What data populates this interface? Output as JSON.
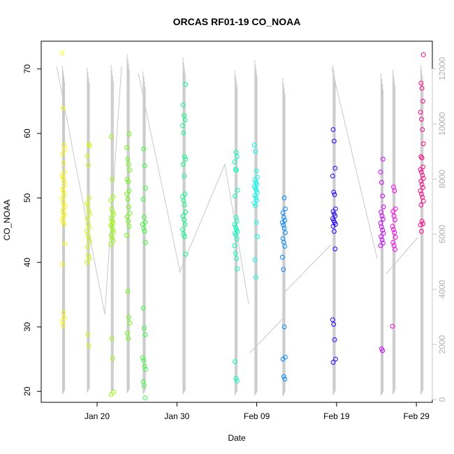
{
  "chart_data": {
    "type": "scatter",
    "title": "ORCAS RF01-19 CO_NOAA",
    "xlabel": "Date",
    "ylabel": "CO_NOAA",
    "xlim": [
      "2016-01-13",
      "2016-03-02"
    ],
    "ylim": [
      18.3,
      74.3
    ],
    "yticks": [
      20,
      30,
      40,
      50,
      60,
      70
    ],
    "xticks": [
      {
        "date": "2016-01-20",
        "label": "Jan 20"
      },
      {
        "date": "2016-01-30",
        "label": "Jan 30"
      },
      {
        "date": "2016-02-09",
        "label": "Feb 09"
      },
      {
        "date": "2016-02-19",
        "label": "Feb 19"
      },
      {
        "date": "2016-02-29",
        "label": "Feb 29"
      }
    ],
    "y2lim": [
      -100,
      13000
    ],
    "y2ticks": [
      0,
      2000,
      4000,
      6000,
      8000,
      10000,
      12000
    ],
    "grid": false,
    "legend": "none",
    "secondary_color": "#c8c8c8",
    "flights": [
      {
        "date": "2016-01-15.8",
        "color": "#ffff00",
        "values": [
          72.5,
          63.9,
          58.2,
          57.5,
          56.8,
          55.4,
          54.0,
          53.5,
          53.1,
          52.6,
          52.0,
          51.4,
          51.0,
          50.5,
          50.0,
          49.5,
          49.0,
          48.6,
          48.1,
          47.6,
          47.2,
          46.8,
          46.3,
          45.9,
          42.9,
          39.7,
          32.2,
          31.4,
          30.9,
          30.2
        ]
      },
      {
        "date": "2016-01-18.9",
        "color": "#ccff00",
        "values": [
          58.3,
          58.1,
          56.5,
          55.1,
          50.0,
          49.2,
          48.8,
          48.0,
          47.5,
          46.8,
          46.0,
          45.4,
          44.9,
          44.3,
          43.8,
          43.2,
          42.4,
          41.1,
          40.6,
          40.0,
          28.8,
          27.1
        ]
      },
      {
        "date": "2016-01-21.9",
        "color": "#99ff00",
        "values": [
          59.5,
          52.9,
          50.2,
          49.6,
          48.3,
          47.8,
          47.4,
          46.9,
          46.5,
          46.1,
          45.8,
          45.6,
          45.1,
          44.7,
          44.2,
          43.8,
          43.3,
          42.8,
          28.2,
          25.1,
          19.9,
          19.5
        ]
      },
      {
        "date": "2016-01-23.9",
        "color": "#66ff00",
        "values": [
          59.9,
          57.8,
          56.0,
          55.2,
          54.3,
          52.9,
          52.5,
          51.1,
          50.6,
          49.8,
          48.6,
          47.6,
          47.1,
          46.4,
          45.6,
          44.2,
          35.5,
          31.5,
          30.6,
          29.0,
          28.2
        ]
      },
      {
        "date": "2016-01-25.9",
        "color": "#33ff33",
        "values": [
          57.6,
          55.0,
          51.5,
          49.8,
          47.0,
          46.2,
          45.9,
          45.3,
          44.8,
          43.1,
          32.9,
          29.8,
          28.8,
          25.2,
          24.8,
          23.9,
          23.4,
          21.5,
          20.9,
          19.0
        ]
      },
      {
        "date": "2016-01-30.9",
        "color": "#00ff88",
        "values": [
          67.6,
          64.4,
          62.8,
          62.1,
          61.2,
          60.1,
          56.4,
          56.0,
          55.2,
          53.4,
          50.6,
          50.2,
          49.6,
          48.9,
          47.8,
          47.2,
          46.6,
          45.9,
          45.1,
          44.4,
          44.0,
          41.3
        ]
      },
      {
        "date": "2016-02-06.4",
        "color": "#00ffbb",
        "values": [
          57.1,
          56.4,
          55.6,
          54.4,
          54.3,
          51.2,
          50.3,
          47.0,
          46.4,
          45.9,
          45.5,
          45.1,
          44.8,
          44.5,
          44.2,
          43.6,
          42.6,
          41.4,
          40.6,
          39.0,
          24.6,
          22.0,
          21.6
        ]
      },
      {
        "date": "2016-02-08.9",
        "color": "#00ffee",
        "values": [
          58.2,
          57.2,
          54.2,
          53.2,
          52.8,
          52.4,
          52.1,
          51.8,
          51.5,
          51.2,
          50.8,
          50.4,
          50.0,
          49.6,
          49.2,
          48.8,
          46.2,
          44.0,
          40.4,
          37.7
        ]
      },
      {
        "date": "2016-02-12.4",
        "color": "#0088ff",
        "values": [
          50.0,
          48.3,
          47.7,
          47.0,
          46.5,
          46.2,
          45.8,
          45.3,
          44.6,
          43.7,
          43.1,
          42.5,
          40.8,
          38.9,
          30.0,
          25.3,
          25.0,
          22.3,
          21.9
        ]
      },
      {
        "date": "2016-02-18.7",
        "color": "#2200ff",
        "values": [
          60.6,
          58.8,
          54.6,
          53.4,
          50.9,
          50.5,
          48.3,
          47.9,
          47.5,
          47.2,
          46.8,
          46.5,
          46.2,
          45.9,
          45.6,
          44.8,
          42.1,
          31.1,
          30.4,
          28.0,
          25.0,
          24.5
        ]
      },
      {
        "date": "2016-02-24.7",
        "color": "#cc00ff",
        "values": [
          56.0,
          54.0,
          52.4,
          50.3,
          48.6,
          47.8,
          47.2,
          46.7,
          46.1,
          45.5,
          45.0,
          44.5,
          44.0,
          43.5,
          43.0,
          42.6,
          26.6,
          26.3
        ]
      },
      {
        "date": "2016-02-26.2",
        "color": "#ff00ee",
        "values": [
          51.7,
          51.1,
          48.3,
          47.9,
          47.2,
          46.6,
          45.6,
          45.1,
          44.6,
          43.9,
          43.1,
          42.6,
          42.0,
          30.1
        ]
      },
      {
        "date": "2016-02-29.7",
        "color": "#ff0088",
        "values": [
          72.2,
          67.8,
          67.0,
          65.0,
          63.3,
          62.2,
          60.6,
          58.4,
          56.4,
          56.2,
          54.8,
          54.4,
          54.0,
          53.5,
          53.0,
          52.6,
          52.1,
          51.6,
          51.1,
          50.6,
          50.1,
          49.5,
          48.9,
          46.4,
          46.0,
          45.8,
          44.8
        ]
      }
    ]
  }
}
